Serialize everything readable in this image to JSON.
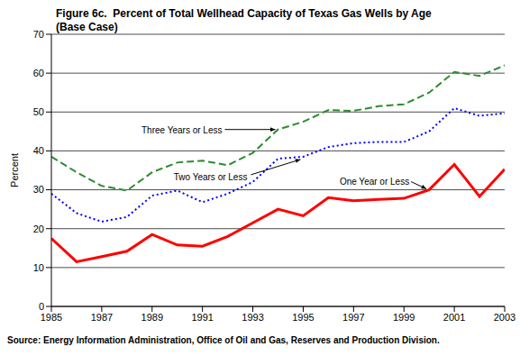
{
  "chart_data": {
    "type": "line",
    "title": "Figure 6c.  Percent of Total Wellhead Capacity of Texas Gas Wells by Age (Base Case)",
    "source": "Source: Energy Information Administration, Office of Oil and Gas, Reserves and Production Division.",
    "y_label": "Percent",
    "x": [
      1985,
      1986,
      1987,
      1988,
      1989,
      1990,
      1991,
      1992,
      1993,
      1994,
      1995,
      1996,
      1997,
      1998,
      1999,
      2000,
      2001,
      2002,
      2003
    ],
    "xlim": [
      1985,
      2003
    ],
    "xticks": [
      1985,
      1987,
      1989,
      1991,
      1993,
      1995,
      1997,
      1999,
      2001,
      2003
    ],
    "ylim": [
      0,
      70
    ],
    "yticks": [
      0,
      10,
      20,
      30,
      40,
      50,
      60,
      70
    ],
    "grid": true,
    "series": [
      {
        "name": "One Year or Less",
        "color": "#ff0000",
        "line_style": "solid",
        "values": [
          17.5,
          11.5,
          12.8,
          14.2,
          18.5,
          15.8,
          15.5,
          18,
          21.5,
          25,
          23.3,
          28,
          27.2,
          27.5,
          27.8,
          30,
          36.5,
          28.3,
          35.3
        ]
      },
      {
        "name": "Two Years or Less",
        "color": "#0000ff",
        "line_style": "dotted",
        "values": [
          29,
          24,
          21.8,
          23,
          28.5,
          29.8,
          26.8,
          29,
          32,
          38,
          38.5,
          41,
          42,
          42.3,
          42.3,
          45,
          51,
          49,
          49.7
        ]
      },
      {
        "name": "Three Years or Less",
        "color": "#2e8b2e",
        "line_style": "dashed",
        "values": [
          38.5,
          34.5,
          31,
          29.8,
          34.5,
          37,
          37.5,
          36.3,
          39.5,
          45.5,
          47.5,
          50.5,
          50.3,
          51.5,
          52,
          55,
          60.3,
          59.3,
          62
        ]
      }
    ]
  }
}
